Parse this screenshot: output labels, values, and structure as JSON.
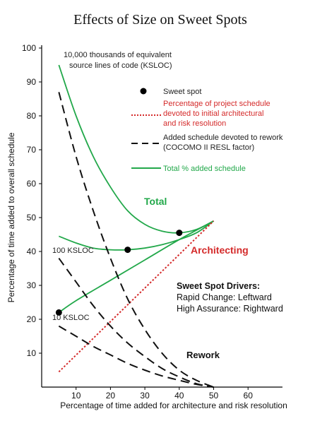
{
  "chart_data": {
    "type": "line",
    "title": "Effects of Size on Sweet Spots",
    "xlabel": "Percentage of time added for architecture and risk resolution",
    "ylabel": "Percentage of time added to overall schedule",
    "xlim": [
      0,
      70
    ],
    "ylim": [
      0,
      100
    ],
    "xticks": [
      10,
      20,
      30,
      40,
      50,
      60
    ],
    "yticks": [
      10,
      20,
      30,
      40,
      50,
      60,
      70,
      80,
      90,
      100
    ],
    "grid": false,
    "colors": {
      "total": "#22a84a",
      "architecting": "#d42a2a",
      "rework": "#111111",
      "sweet_spot": "#000000",
      "axis": "#000000"
    },
    "series": [
      {
        "name": "Total % added schedule",
        "role": "total",
        "group": "10,000 KSLOC",
        "x": [
          5,
          10,
          15,
          20,
          25,
          30,
          35,
          40,
          45,
          50
        ],
        "y": [
          95,
          80,
          68,
          59,
          52,
          48,
          46,
          45.5,
          46.5,
          49
        ]
      },
      {
        "name": "Total % added schedule",
        "role": "total",
        "group": "100 KSLOC",
        "x": [
          5,
          10,
          15,
          20,
          25,
          30,
          35,
          40,
          45,
          50
        ],
        "y": [
          44.5,
          42.5,
          41,
          40.5,
          40.5,
          41,
          42,
          43.5,
          45.5,
          49
        ]
      },
      {
        "name": "Total % added schedule",
        "role": "total",
        "group": "10 KSLOC",
        "x": [
          5,
          10,
          20,
          30,
          40,
          50
        ],
        "y": [
          22,
          25.5,
          31.5,
          37.5,
          43.5,
          49
        ]
      },
      {
        "name": "Percentage of project schedule devoted to initial architectural and risk resolution",
        "role": "architecting",
        "x": [
          5,
          50
        ],
        "y": [
          4.5,
          49
        ]
      },
      {
        "name": "Added schedule devoted to rework (COCOMO II RESL factor)",
        "role": "rework",
        "group": "10,000 KSLOC",
        "x": [
          5,
          10,
          15,
          20,
          25,
          30,
          35,
          40,
          45,
          50
        ],
        "y": [
          87,
          68,
          52,
          38,
          26,
          17,
          10,
          5,
          2,
          0
        ]
      },
      {
        "name": "Added schedule devoted to rework (COCOMO II RESL factor)",
        "role": "rework",
        "group": "100 KSLOC",
        "x": [
          5,
          10,
          15,
          20,
          25,
          30,
          35,
          40,
          45,
          50
        ],
        "y": [
          38,
          31,
          24,
          18,
          13,
          9,
          5.5,
          3,
          1,
          0
        ]
      },
      {
        "name": "Added schedule devoted to rework (COCOMO II RESL factor)",
        "role": "rework",
        "group": "10 KSLOC",
        "x": [
          5,
          10,
          15,
          20,
          25,
          30,
          35,
          40,
          45,
          50
        ],
        "y": [
          18,
          15,
          12,
          9.5,
          7,
          5,
          3.3,
          2,
          0.8,
          0
        ]
      }
    ],
    "sweet_spots": [
      {
        "x": 40,
        "y": 45.5
      },
      {
        "x": 25,
        "y": 40.5
      },
      {
        "x": 5,
        "y": 22
      }
    ],
    "annotations": {
      "size_10000": {
        "line1": "10,000 thousands of equivalent",
        "line2": "source lines of code (KSLOC)"
      },
      "size_100": "100 KSLOC",
      "size_10": "10 KSLOC",
      "total": "Total",
      "architecting": "Architecting",
      "rework": "Rework",
      "drivers_title": "Sweet Spot Drivers:",
      "drivers_line1": "Rapid Change: Leftward",
      "drivers_line2": "High Assurance: Rightward"
    },
    "legend": {
      "placement": "top-right",
      "entries": [
        {
          "role": "sweet_spot",
          "lines": [
            "Sweet spot"
          ]
        },
        {
          "role": "architecting",
          "lines": [
            "Percentage of project schedule",
            "devoted to initial architectural",
            "and risk resolution"
          ]
        },
        {
          "role": "rework",
          "lines": [
            "Added schedule devoted to rework",
            "(COCOMO II RESL factor)"
          ]
        },
        {
          "role": "total",
          "lines": [
            "Total % added schedule"
          ]
        }
      ]
    }
  }
}
